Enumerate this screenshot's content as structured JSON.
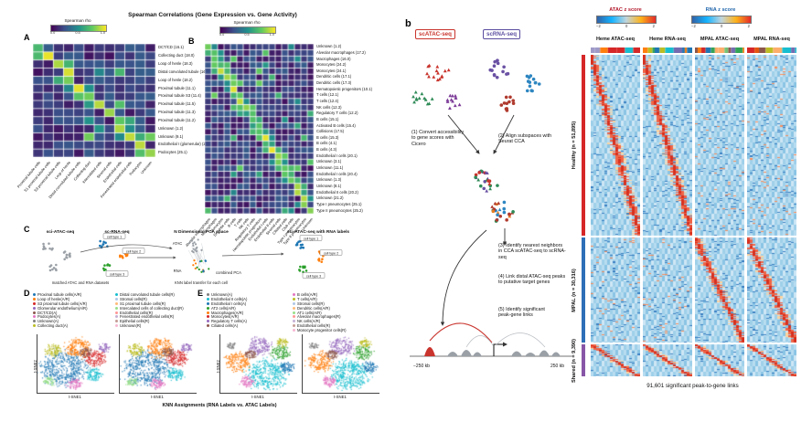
{
  "left": {
    "title": "Spearman Correlations (Gene Expression vs. Gene Activity)",
    "panel_a": {
      "label": "A",
      "colorbar": {
        "label": "Spearman rho",
        "ticks": [
          "0.0",
          "0.5",
          "1.0"
        ]
      },
      "rows": [
        "DCT/CD (16.1)",
        "Collecting duct (18.0)",
        "Loop of henle (18.3)",
        "Distal convoluted tubule (16.4)",
        "Loop of henle (18.2)",
        "Proximal tubule (11.1)",
        "Proximal tubule S3 (11.4)",
        "Proximal tubule (11.5)",
        "Proximal tubule (11.3)",
        "Proximal tubule (11.2)",
        "Unknown (1.2)",
        "Unknown (9.1)",
        "Endothelial I (glomerular) (22.3)",
        "Podocytes (25.1)"
      ],
      "cols": [
        "Proximal tubule cells",
        "S1 proximal tubule cells",
        "S3 proximal tubule cells",
        "Loop of henle",
        "Distal convoluted tubule cells",
        "Collecting duct",
        "Intercalated cells",
        "Stromal cells",
        "Endothelial cells",
        "Fenestrated endothelial cells",
        "Podocytes",
        "Unknown"
      ]
    },
    "panel_b": {
      "label": "B",
      "colorbar": {
        "label": "Spearman rho",
        "ticks": [
          "0.0",
          "0.5",
          "1.0"
        ]
      },
      "rows": [
        "Unknown (1.2)",
        "Alveolar macrophages (17.2)",
        "Macrophages (16.0)",
        "Monocytes (24.2)",
        "Monocytes (24.1)",
        "Dendritic cells (17.1)",
        "Dendritic cells (17.3)",
        "Hematopoietic progenitors (10.1)",
        "T cells (12.1)",
        "T cells (12.4)",
        "NK cells (12.3)",
        "Regulatory T cells (12.2)",
        "B cells (15.1)",
        "Activated B cells (15.4)",
        "Collisions (17.5)",
        "B cells (15.3)",
        "B cells (4.1)",
        "B cells (4.3)",
        "Endothelial I cells (20.1)",
        "Unknown (3.1)",
        "Unknown (11.1)",
        "Endothelial I cells (20.4)",
        "Unknown (1.3)",
        "Unknown (8.1)",
        "Endothelial II cells (20.2)",
        "Unknown (21.2)",
        "Type I pneumocytes (25.1)",
        "Type II pneumocytes (25.2)"
      ],
      "cols": [
        "Alveolar macrophages",
        "Macrophages",
        "Monocytes",
        "Dendritic cells",
        "B cells",
        "T cells",
        "NK cells",
        "Regulatory T cells",
        "Hematopoietic progenitors",
        "Endothelial I cells",
        "Endothelial II cells",
        "Stromal cells",
        "Ciliated cells",
        "Club cells",
        "Type I pneumocytes",
        "Type II pneumocytes",
        "Unknown"
      ]
    },
    "panel_c": {
      "label": "C",
      "atac_header": "sci-ATAC-seq",
      "rna_header": "sc-RNA-seq",
      "pca_header": "N Dimensional PCA space",
      "result_header": "sci-ATAC-seq with RNA labels",
      "combined_label": "combined PCA",
      "atac_point_label": "ATAC",
      "rna_point_label": "RNA",
      "knn_caption": "KNN label transfer for each cell",
      "matched_caption": "matched ATAC and RNA datasets",
      "cell_tags": [
        "cell type 1",
        "cell type 2",
        "cell type 3"
      ]
    },
    "panel_d": {
      "label": "D",
      "legend_col1": [
        {
          "label": "Proximal tubule cells(A/R)",
          "color": "#1f77b4"
        },
        {
          "label": "Loop of henle(A/R)",
          "color": "#ff7f0e"
        },
        {
          "label": "S3 proximal tubule cells(A/R)",
          "color": "#d62728"
        },
        {
          "label": "Glomerular endothelium(A/R)",
          "color": "#9467bd"
        },
        {
          "label": "DCT/CD(A)",
          "color": "#8c564b"
        },
        {
          "label": "Podocytes(A)",
          "color": "#e377c2"
        },
        {
          "label": "Unknown(A)",
          "color": "#7f7f7f"
        },
        {
          "label": "Collecting duct(A)",
          "color": "#bcbd22"
        }
      ],
      "legend_col2": [
        {
          "label": "Distal convoluted tubule cells(R)",
          "color": "#17becf"
        },
        {
          "label": "Stromal cells(R)",
          "color": "#aec7e8"
        },
        {
          "label": "S1 proximal tubule cells(R)",
          "color": "#ffbb78"
        },
        {
          "label": "Intercalated cells of collecting duct(R)",
          "color": "#98df8a"
        },
        {
          "label": "Endothelial cells(R)",
          "color": "#ff9896"
        },
        {
          "label": "Fenestrated endothelial cells(R)",
          "color": "#c5b0d5"
        },
        {
          "label": "Epithelial cells(R)",
          "color": "#c49c94"
        },
        {
          "label": "Unknown(R)",
          "color": "#f7b6d2"
        }
      ]
    },
    "panel_e": {
      "label": "E",
      "legend_col1": [
        {
          "label": "Unknown(A)",
          "color": "#7f7f7f"
        },
        {
          "label": "Endothelial II cells(A)",
          "color": "#17becf"
        },
        {
          "label": "Endothelial I cells(A)",
          "color": "#1f77b4"
        },
        {
          "label": "AT2 cells(A/R)",
          "color": "#2ca02c"
        },
        {
          "label": "Macrophages(A/R)",
          "color": "#ff7f0e"
        },
        {
          "label": "Monocytes(A/R)",
          "color": "#d62728"
        },
        {
          "label": "Regulatory T cells(A)",
          "color": "#9467bd"
        },
        {
          "label": "Ciliated cells(A)",
          "color": "#8c564b"
        }
      ],
      "legend_col2": [
        {
          "label": "B cells(A/R)",
          "color": "#e377c2"
        },
        {
          "label": "T cells(A/R)",
          "color": "#bcbd22"
        },
        {
          "label": "Stromal cells(R)",
          "color": "#aec7e8"
        },
        {
          "label": "Dendritic cells(A/R)",
          "color": "#ffbb78"
        },
        {
          "label": "AT1 cells(A/R)",
          "color": "#98df8a"
        },
        {
          "label": "Alveolar macrophages(R)",
          "color": "#ff9896"
        },
        {
          "label": "NK cells(A/R)",
          "color": "#c5b0d5"
        },
        {
          "label": "Endothelial cells(R)",
          "color": "#c49c94"
        },
        {
          "label": "Monocyte progenitor cells(R)",
          "color": "#f7b6d2"
        }
      ]
    },
    "tsne": {
      "xlabel": "t-SNE1",
      "ylabel": "t-SNE2",
      "caption": "KNN Assignments (RNA Labels vs. ATAC Labels)"
    }
  },
  "right": {
    "panel_label": "b",
    "workflow": {
      "atac_title": "scATAC-seq",
      "atac_color": "#c9342d",
      "rna_title": "scRNA-seq",
      "rna_color": "#5b4ea0",
      "steps": [
        "(1) Convert accessibility to gene scores with Cicero",
        "(2) Align subspaces with Seurat CCA",
        "(3) Identify nearest neighbors in CCA scATAC-seq to scRNA-seq",
        "(4) Link distal ATAC-seq peaks to putative target genes",
        "(5) Identify significant peak-gene links"
      ],
      "kb_left": "−250 kb",
      "kb_right": "250 kb"
    },
    "p2g": {
      "atac_scale": {
        "label": "ATAC z score",
        "label_color": "#b2182b",
        "ticks": [
          "−2",
          "0",
          "2"
        ]
      },
      "rna_scale": {
        "label": "RNA z score",
        "label_color": "#2166ac",
        "ticks": [
          "−2",
          "0",
          "2"
        ]
      },
      "columns": [
        "Heme ATAC-seq",
        "Heme RNA-seq",
        "MPAL ATAC-seq",
        "MPAL RNA-seq"
      ],
      "row_groups": [
        {
          "name": "Healthy",
          "n": "(n = 51,895)",
          "color": "#d62728"
        },
        {
          "name": "MPAL",
          "n": "(n = 30,316)",
          "color": "#2e6fb7"
        },
        {
          "name": "Shared",
          "n": "(n = 9,390)",
          "color": "#8856a7"
        }
      ],
      "caption": "91,601 significant peak-to-gene links"
    }
  }
}
